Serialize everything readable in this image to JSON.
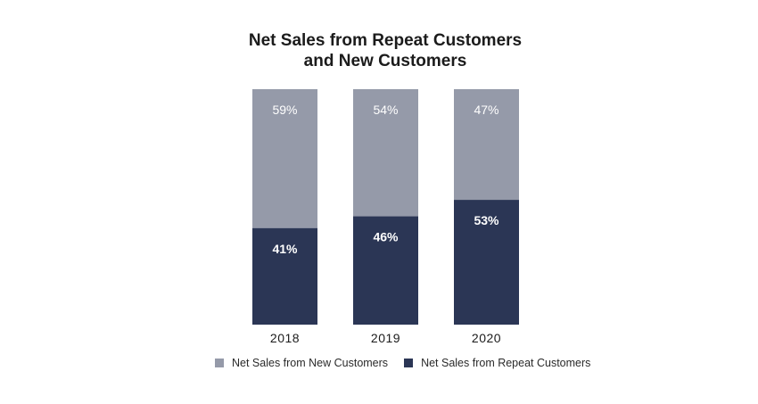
{
  "chart_data": {
    "type": "bar",
    "stacked": true,
    "title_lines": [
      "Net Sales from Repeat Customers",
      "and New Customers"
    ],
    "categories": [
      "2018",
      "2019",
      "2020"
    ],
    "series": [
      {
        "name": "Net Sales from Repeat Customers",
        "values": [
          41,
          46,
          53
        ],
        "color": "#2b3655",
        "label_color": "#ffffff",
        "labels": [
          "41%",
          "46%",
          "53%"
        ]
      },
      {
        "name": "Net Sales from New Customers",
        "values": [
          59,
          54,
          47
        ],
        "color": "#959aa9",
        "label_color": "#ffffff",
        "labels": [
          "59%",
          "54%",
          "47%"
        ]
      }
    ],
    "ylim": [
      0,
      100
    ],
    "xlabel": "",
    "ylabel": "",
    "legend_position": "bottom",
    "grid": false
  }
}
